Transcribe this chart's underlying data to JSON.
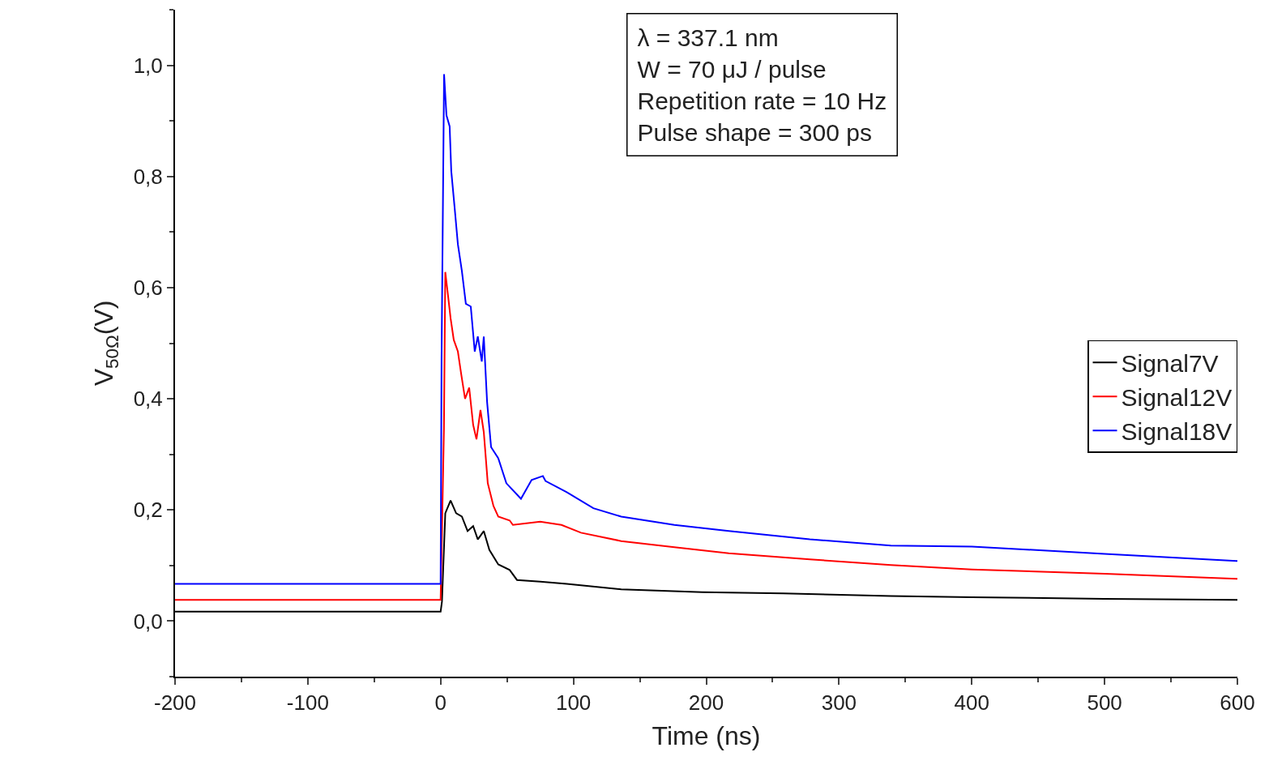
{
  "chart_data": {
    "type": "line",
    "xlabel": "Time (ns)",
    "ylabel": "V$_{50Ω}$(V)",
    "xlim": [
      -200,
      600
    ],
    "ylim": [
      -0.1,
      1.1
    ],
    "xticks": [
      -200,
      -100,
      0,
      100,
      200,
      300,
      400,
      500,
      600
    ],
    "yticks": [
      {
        "value": 0,
        "label": "0,0"
      },
      {
        "value": 0.2,
        "label": "0,2"
      },
      {
        "value": 0.4,
        "label": "0,4"
      },
      {
        "value": 0.6,
        "label": "0,6"
      },
      {
        "value": 0.8,
        "label": "0,8"
      },
      {
        "value": 1.0,
        "label": "1,0"
      }
    ],
    "legend": "right",
    "marker": "none",
    "line_style": "solid",
    "annotations": [
      "λ = 337.1 nm\nW = 70 μJ / pulse\nRepetition rate = 10 Hz\nPulse shape = 300 ps"
    ],
    "series": [
      {
        "name": "Signal7V",
        "color": "#000000",
        "x": [
          -200,
          0,
          1,
          3.5,
          7.5,
          11.7,
          16,
          20.3,
          24.5,
          28,
          32.5,
          36.7,
          43.4,
          52,
          57.5,
          75,
          95,
          136,
          197,
          258,
          339,
          400,
          500,
          600
        ],
        "values": [
          0.017,
          0.017,
          0.035,
          0.194,
          0.217,
          0.194,
          0.188,
          0.162,
          0.171,
          0.147,
          0.162,
          0.128,
          0.102,
          0.092,
          0.074,
          0.071,
          0.067,
          0.057,
          0.052,
          0.05,
          0.045,
          0.043,
          0.04,
          0.038
        ]
      },
      {
        "name": "Signal12V",
        "color": "#ff0000",
        "x": [
          -200,
          0,
          2.5,
          3.5,
          5.6,
          7.5,
          9.9,
          13,
          15.4,
          18.4,
          21.5,
          24.5,
          27,
          30,
          32.5,
          35.5,
          39.8,
          43.4,
          52,
          54.4,
          75,
          91,
          105.7,
          136,
          176,
          217,
          278,
          339,
          400,
          500,
          600
        ],
        "values": [
          0.038,
          0.038,
          0.347,
          0.628,
          0.585,
          0.545,
          0.506,
          0.485,
          0.446,
          0.4,
          0.42,
          0.353,
          0.327,
          0.38,
          0.34,
          0.248,
          0.207,
          0.188,
          0.181,
          0.173,
          0.179,
          0.173,
          0.159,
          0.144,
          0.133,
          0.122,
          0.111,
          0.101,
          0.093,
          0.085,
          0.076
        ]
      },
      {
        "name": "Signal18V",
        "color": "#0000ff",
        "x": [
          -200,
          0,
          0.7,
          2.6,
          4.4,
          6.8,
          8,
          10.5,
          13,
          16,
          19,
          22.7,
          25.7,
          28,
          31,
          32.5,
          35,
          38,
          43.4,
          49.5,
          60.5,
          68.5,
          77,
          79,
          95,
          115,
          136,
          176,
          217,
          278,
          339,
          400,
          500,
          600
        ],
        "values": [
          0.067,
          0.067,
          0.47,
          0.984,
          0.91,
          0.89,
          0.81,
          0.745,
          0.678,
          0.63,
          0.571,
          0.566,
          0.485,
          0.512,
          0.467,
          0.512,
          0.394,
          0.313,
          0.293,
          0.248,
          0.22,
          0.254,
          0.261,
          0.252,
          0.232,
          0.203,
          0.188,
          0.173,
          0.162,
          0.147,
          0.136,
          0.134,
          0.121,
          0.108
        ]
      }
    ]
  }
}
